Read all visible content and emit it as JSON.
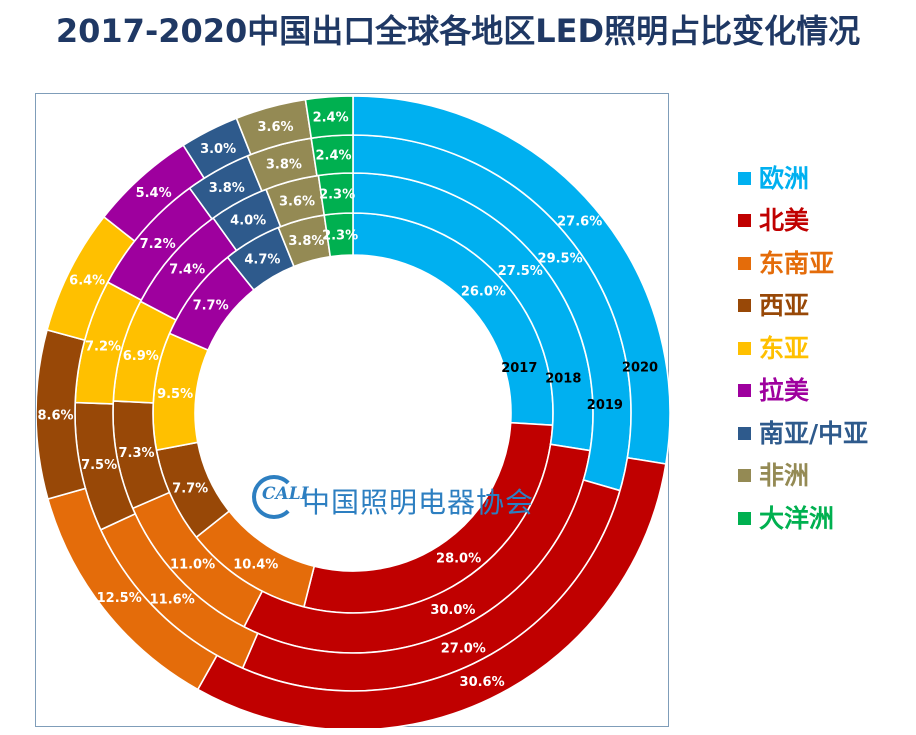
{
  "title": "2017-2020中国出口全球各地区LED照明占比变化情况",
  "logo": {
    "mark": "CALI",
    "text": "中国照明电器协会"
  },
  "chart_data": {
    "type": "donut",
    "title": "2017-2020中国出口全球各地区LED照明占比变化情况",
    "legend_position": "right",
    "rings_inner_to_outer": [
      "2017",
      "2018",
      "2019",
      "2020"
    ],
    "categories": [
      "欧洲",
      "北美",
      "东南亚",
      "西亚",
      "东亚",
      "拉美",
      "南亚/中亚",
      "非洲",
      "大洋洲"
    ],
    "colors": [
      "#00b0f0",
      "#c00000",
      "#e46c0a",
      "#984807",
      "#ffc000",
      "#9e009e",
      "#2e5a8c",
      "#948a54",
      "#00b050"
    ],
    "legend_text_colors": [
      "#00b0f0",
      "#c00000",
      "#e46c0a",
      "#984807",
      "#ffc000",
      "#9e009e",
      "#2e5a8c",
      "#948a54",
      "#00b050"
    ],
    "series": [
      {
        "name": "2017",
        "values": [
          26.0,
          28.0,
          10.4,
          7.7,
          9.5,
          7.7,
          4.7,
          3.8,
          2.3
        ],
        "labels": [
          "26.0%",
          "28.0%",
          "10.4%",
          "7.7%",
          "9.5%",
          "7.7%",
          "4.7%",
          "3.8%",
          "2.3%"
        ]
      },
      {
        "name": "2018",
        "values": [
          27.5,
          30.0,
          11.0,
          7.3,
          6.9,
          7.4,
          4.0,
          3.6,
          2.3
        ],
        "labels": [
          "27.5%",
          "30.0%",
          "11.0%",
          "7.3%",
          "6.9%",
          "7.4%",
          "4.0%",
          "3.6%",
          "2.3%"
        ]
      },
      {
        "name": "2019",
        "values": [
          29.5,
          27.0,
          11.6,
          7.5,
          7.2,
          7.2,
          3.8,
          3.8,
          2.4
        ],
        "labels": [
          "29.5%",
          "27.0%",
          "11.6%",
          "7.5%",
          "7.2%",
          "7.2%",
          "3.8%",
          "3.8%",
          "2.4%"
        ]
      },
      {
        "name": "2020",
        "values": [
          27.6,
          30.6,
          12.5,
          8.6,
          6.4,
          5.4,
          3.0,
          3.6,
          2.4
        ],
        "labels": [
          "27.6%",
          "30.6%",
          "12.5%",
          "8.6%",
          "6.4%",
          "5.4%",
          "3.0%",
          "3.6%",
          "2.4%"
        ]
      }
    ]
  }
}
